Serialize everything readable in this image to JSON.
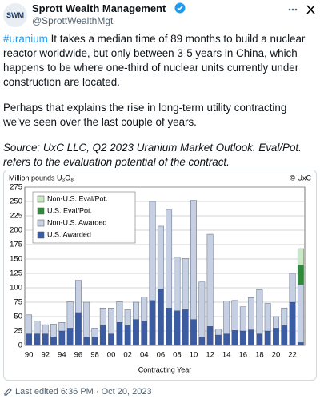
{
  "tweet": {
    "avatar": "SWM",
    "name": "Sprott Wealth Management",
    "handle": "@SprottWealthMgt",
    "hashtag": "#uranium",
    "paragraphs": [
      "It takes a median time of 89 months to build a nuclear reactor worldwide, but only between 3-5 years in China, which happens to be where one-third of nuclear units currently under construction are located.",
      "Perhaps that explains the rise in long-term utility contracting we’ve seen over the last couple of years.",
      "Source: UxC LLC, Q2 2023 Uranium Market Outlook. Eval/Pot. refers to the evaluation potential of the contract."
    ],
    "footer": "Last edited 6:36 PM · Oct 20, 2023"
  },
  "chart_data": {
    "type": "stacked-bar",
    "title": "Million pounds U₃O₈",
    "credit": "© UxC",
    "x_label": "Contracting Year",
    "categories": [
      "90",
      null,
      "92",
      null,
      "94",
      null,
      "96",
      null,
      "98",
      null,
      "00",
      null,
      "02",
      null,
      "04",
      null,
      "06",
      null,
      "08",
      null,
      "10",
      null,
      "12",
      null,
      "14",
      null,
      "16",
      null,
      "18",
      null,
      "20",
      null,
      "22",
      null
    ],
    "series": [
      {
        "name": "U.S. Awarded",
        "color": "#3b5ca3",
        "values": [
          20,
          20,
          20,
          15,
          25,
          30,
          57,
          15,
          15,
          35,
          20,
          40,
          35,
          45,
          42,
          78,
          98,
          65,
          60,
          62,
          45,
          15,
          33,
          18,
          20,
          26,
          25,
          27,
          20,
          25,
          30,
          35,
          75,
          5
        ]
      },
      {
        "name": "Non-U.S. Awarded",
        "color": "#c6d0e2",
        "values": [
          33,
          22,
          16,
          22,
          15,
          46,
          56,
          60,
          15,
          30,
          45,
          36,
          27,
          30,
          42,
          172,
          109,
          170,
          93,
          89,
          207,
          95,
          160,
          10,
          57,
          52,
          42,
          56,
          77,
          48,
          20,
          30,
          50,
          100
        ]
      },
      {
        "name": "U.S. Eval/Pot.",
        "color": "#2e8b3a",
        "values": [
          0,
          0,
          0,
          0,
          0,
          0,
          0,
          0,
          0,
          0,
          0,
          0,
          0,
          0,
          0,
          0,
          0,
          0,
          0,
          0,
          0,
          0,
          0,
          0,
          0,
          0,
          0,
          0,
          0,
          0,
          0,
          0,
          0,
          35
        ]
      },
      {
        "name": "Non-U.S. Eval/Pot.",
        "color": "#c9e8c2",
        "values": [
          0,
          0,
          0,
          0,
          0,
          0,
          0,
          0,
          0,
          0,
          0,
          0,
          0,
          0,
          0,
          0,
          0,
          0,
          0,
          0,
          0,
          0,
          0,
          0,
          0,
          0,
          0,
          0,
          0,
          0,
          0,
          0,
          0,
          28
        ]
      }
    ],
    "ylim": [
      0,
      275
    ],
    "yticks": [
      0,
      25,
      50,
      75,
      100,
      125,
      150,
      175,
      200,
      225,
      250,
      275
    ],
    "grid": true
  }
}
